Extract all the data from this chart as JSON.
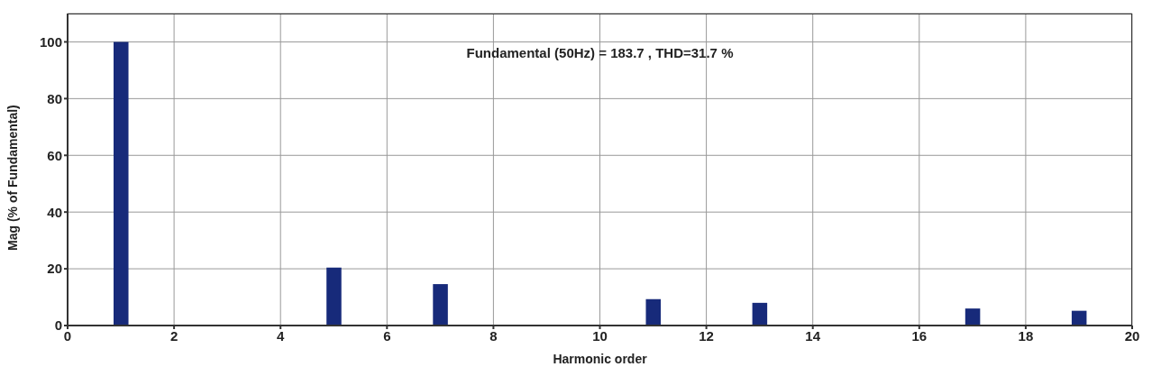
{
  "chart_data": {
    "type": "bar",
    "annotations": [
      "Fundamental (50Hz) = 183.7 , THD=31.7 %"
    ],
    "xlabel": "Harmonic order",
    "ylabel": "Mag (% of Fundamental)",
    "x": [
      1,
      5,
      7,
      11,
      13,
      17,
      19
    ],
    "values": [
      100,
      20.4,
      14.6,
      9.3,
      8,
      6,
      5.2
    ],
    "color": "#172a7a",
    "xlim": [
      0,
      20
    ],
    "xticks": [
      0,
      2,
      4,
      6,
      8,
      10,
      12,
      14,
      16,
      18,
      20
    ],
    "ylim": [
      0,
      110
    ],
    "yticks": [
      0,
      20,
      40,
      60,
      80,
      100
    ],
    "grid": true
  }
}
